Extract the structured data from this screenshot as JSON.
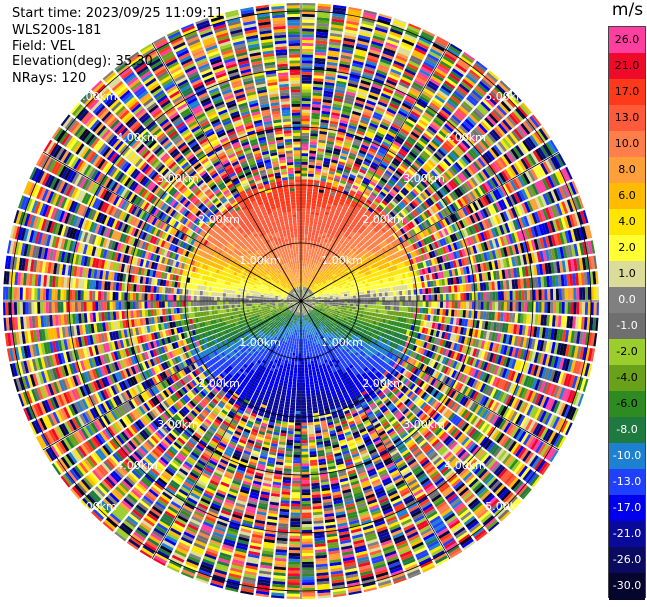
{
  "header": {
    "start_time": "Start time: 2023/09/25 11:09:11",
    "instrument": "WLS200s-181",
    "field": "Field: VEL",
    "elevation": "Elevation(deg): 35.30",
    "nrays": "NRays: 120"
  },
  "chart_data": {
    "type": "ppi",
    "unit": "m/s",
    "field": "VEL",
    "n_rays": 120,
    "elevation_deg": 35.3,
    "range_rings": [
      {
        "label": "1.00km"
      },
      {
        "label": "2.00km"
      },
      {
        "label": "3.00km"
      },
      {
        "label": "4.00km"
      },
      {
        "label": "5.00km"
      }
    ],
    "colorbar": [
      {
        "label": "26.0",
        "color": "#ff3fa0"
      },
      {
        "label": "21.0",
        "color": "#f00a2a"
      },
      {
        "label": "17.0",
        "color": "#ff3a1a"
      },
      {
        "label": "13.0",
        "color": "#ff5a3a"
      },
      {
        "label": "10.0",
        "color": "#ff7e4a"
      },
      {
        "label": "8.0",
        "color": "#ff9f3a"
      },
      {
        "label": "6.0",
        "color": "#ffbb00"
      },
      {
        "label": "4.0",
        "color": "#ffe600"
      },
      {
        "label": "2.0",
        "color": "#ffff33"
      },
      {
        "label": "1.0",
        "color": "#dcdc9a"
      },
      {
        "label": "0.0",
        "color": "#808080"
      },
      {
        "label": "-1.0",
        "color": "#6f6f6f"
      },
      {
        "label": "-2.0",
        "color": "#9bcd2c"
      },
      {
        "label": "-4.0",
        "color": "#6aa11a"
      },
      {
        "label": "-6.0",
        "color": "#2e8b22"
      },
      {
        "label": "-8.0",
        "color": "#1f7a3f"
      },
      {
        "label": "-10.0",
        "color": "#1e80d0"
      },
      {
        "label": "-13.0",
        "color": "#2040ff"
      },
      {
        "label": "-17.0",
        "color": "#0000ee"
      },
      {
        "label": "-21.0",
        "color": "#0a0a9a"
      },
      {
        "label": "-26.0",
        "color": "#0a0a60"
      },
      {
        "label": "-30.0",
        "color": "#05052e"
      }
    ]
  }
}
